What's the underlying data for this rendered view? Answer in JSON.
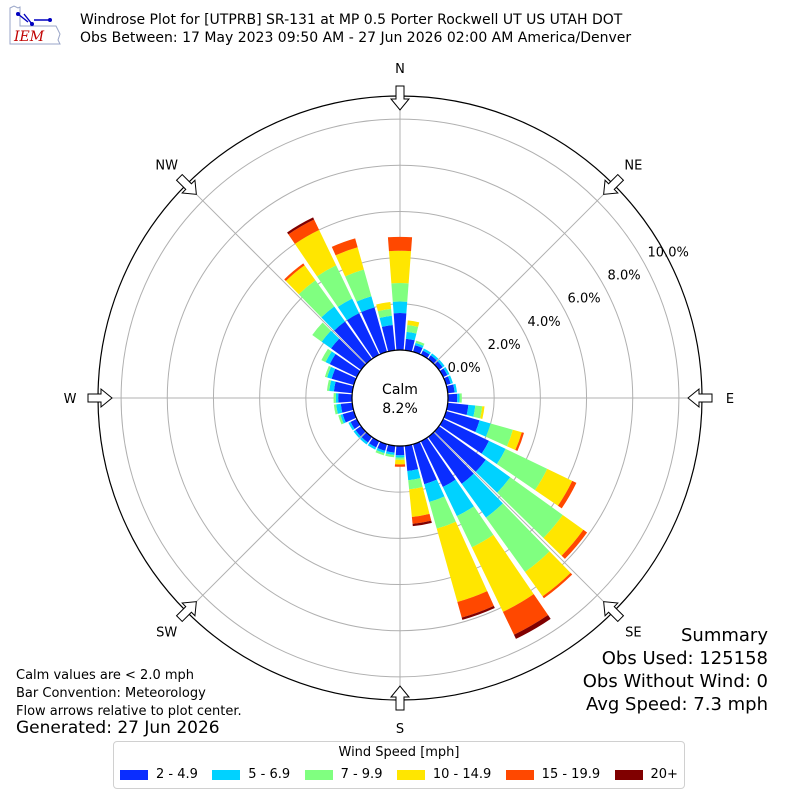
{
  "header": {
    "logo_text": "IEM",
    "title_line1": "Windrose Plot for [UTPRB] SR-131 at MP 0.5 Porter Rockwell UT US UTAH DOT",
    "title_line2": "Obs Between: 17 May 2023 09:50 AM - 27 Jun 2026 02:00 AM America/Denver"
  },
  "summary": {
    "title": "Summary",
    "obs_used": "Obs Used: 125158",
    "obs_without_wind": "Obs Without Wind: 0",
    "avg_speed": "Avg Speed: 7.3 mph"
  },
  "notes": {
    "line1": "Calm values are < 2.0 mph",
    "line2": "Bar Convention: Meteorology",
    "line3": "Flow arrows relative to plot center."
  },
  "generated": "Generated: 27 Jun 2026",
  "legend": {
    "title": "Wind Speed [mph]",
    "items": [
      {
        "label": "2 - 4.9",
        "color": "#0a2dff"
      },
      {
        "label": "5 - 6.9",
        "color": "#00d2ff"
      },
      {
        "label": "7 - 9.9",
        "color": "#80ff80"
      },
      {
        "label": "10 - 14.9",
        "color": "#ffe600"
      },
      {
        "label": "15 - 19.9",
        "color": "#ff4800"
      },
      {
        "label": "20+",
        "color": "#800000"
      }
    ]
  },
  "chart_data": {
    "type": "windrose",
    "calm_label": "Calm",
    "calm_value": "8.2%",
    "directions": [
      "N",
      "NE",
      "E",
      "SE",
      "S",
      "SW",
      "W",
      "NW"
    ],
    "radial_ticks": [
      "0.0%",
      "2.0%",
      "4.0%",
      "6.0%",
      "8.0%",
      "10.0%"
    ],
    "rmax": 11.0,
    "bin_colors": [
      "#0a2dff",
      "#00d2ff",
      "#80ff80",
      "#ffe600",
      "#ff4800",
      "#800000"
    ],
    "sectors_deg": [
      0,
      10,
      20,
      30,
      40,
      50,
      60,
      70,
      80,
      90,
      100,
      110,
      120,
      130,
      140,
      150,
      160,
      170,
      180,
      190,
      200,
      210,
      220,
      230,
      240,
      250,
      260,
      270,
      280,
      290,
      300,
      310,
      320,
      330,
      340,
      350
    ],
    "sector_values": [
      [
        1.6,
        0.5,
        0.8,
        1.4,
        0.6,
        0.0
      ],
      [
        0.5,
        0.3,
        0.3,
        0.2,
        0.0,
        0.0
      ],
      [
        0.3,
        0.1,
        0.1,
        0.0,
        0.0,
        0.0
      ],
      [
        0.2,
        0.1,
        0.0,
        0.0,
        0.0,
        0.0
      ],
      [
        0.2,
        0.1,
        0.0,
        0.0,
        0.0,
        0.0
      ],
      [
        0.2,
        0.1,
        0.0,
        0.0,
        0.0,
        0.0
      ],
      [
        0.2,
        0.1,
        0.0,
        0.0,
        0.0,
        0.0
      ],
      [
        0.2,
        0.1,
        0.0,
        0.0,
        0.0,
        0.0
      ],
      [
        0.3,
        0.1,
        0.0,
        0.0,
        0.0,
        0.0
      ],
      [
        0.4,
        0.1,
        0.1,
        0.0,
        0.0,
        0.0
      ],
      [
        0.9,
        0.3,
        0.3,
        0.1,
        0.0,
        0.0
      ],
      [
        1.5,
        0.5,
        1.0,
        0.4,
        0.1,
        0.0
      ],
      [
        2.2,
        0.8,
        2.0,
        1.2,
        0.2,
        0.0
      ],
      [
        2.5,
        1.3,
        2.8,
        1.1,
        0.2,
        0.0
      ],
      [
        2.5,
        1.8,
        2.9,
        1.3,
        0.1,
        0.0
      ],
      [
        2.2,
        1.4,
        1.5,
        3.1,
        1.1,
        0.2
      ],
      [
        1.8,
        0.8,
        1.2,
        3.3,
        0.7,
        0.1
      ],
      [
        1.1,
        0.4,
        0.4,
        1.2,
        0.3,
        0.1
      ],
      [
        0.4,
        0.1,
        0.1,
        0.2,
        0.1,
        0.0
      ],
      [
        0.3,
        0.1,
        0.1,
        0.0,
        0.0,
        0.0
      ],
      [
        0.3,
        0.1,
        0.1,
        0.0,
        0.0,
        0.0
      ],
      [
        0.3,
        0.1,
        0.0,
        0.0,
        0.0,
        0.0
      ],
      [
        0.3,
        0.1,
        0.0,
        0.0,
        0.0,
        0.0
      ],
      [
        0.3,
        0.1,
        0.0,
        0.0,
        0.0,
        0.0
      ],
      [
        0.3,
        0.1,
        0.0,
        0.0,
        0.0,
        0.0
      ],
      [
        0.5,
        0.1,
        0.1,
        0.0,
        0.0,
        0.0
      ],
      [
        0.5,
        0.2,
        0.1,
        0.0,
        0.0,
        0.0
      ],
      [
        0.6,
        0.1,
        0.1,
        0.0,
        0.0,
        0.0
      ],
      [
        0.8,
        0.2,
        0.1,
        0.0,
        0.0,
        0.0
      ],
      [
        1.0,
        0.2,
        0.1,
        0.0,
        0.0,
        0.0
      ],
      [
        1.3,
        0.2,
        0.2,
        0.0,
        0.0,
        0.0
      ],
      [
        1.6,
        0.5,
        0.5,
        0.0,
        0.0,
        0.0
      ],
      [
        2.0,
        0.8,
        1.4,
        0.8,
        0.1,
        0.0
      ],
      [
        2.0,
        0.7,
        1.6,
        1.7,
        0.5,
        0.1
      ],
      [
        2.0,
        0.5,
        1.2,
        1.0,
        0.4,
        0.0
      ],
      [
        1.1,
        0.4,
        0.3,
        0.3,
        0.0,
        0.0
      ]
    ]
  }
}
